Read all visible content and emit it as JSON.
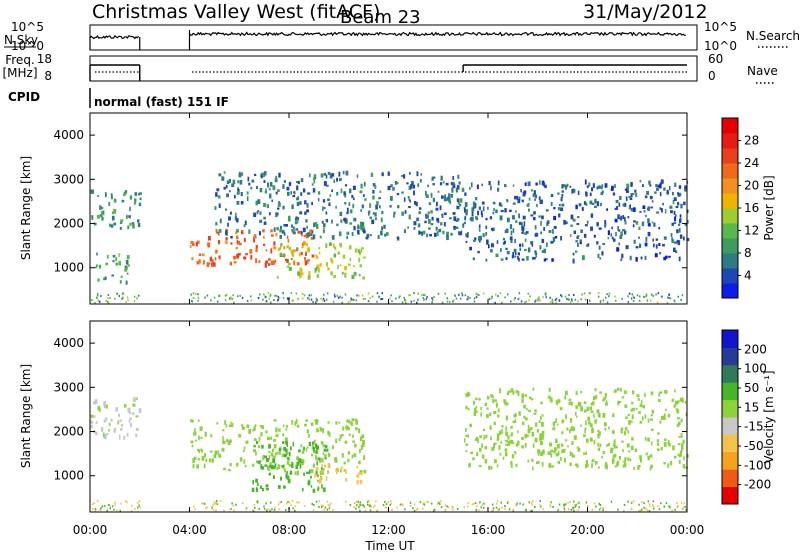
{
  "header": {
    "station": "Christmas Valley West (fitACF)",
    "beam": "Beam 23",
    "date": "31/May/2012"
  },
  "labels": {
    "nsky": "N.Sky",
    "nsearch": "N.Search",
    "freq_line1": "Freq.",
    "freq_line2": "[MHz]",
    "nave": "Nave",
    "cpid": "CPID",
    "cpid_text": "normal (fast) 151 IF",
    "ylabel": "Slant Range [km]",
    "xlabel": "Time UT",
    "power_label": "Power [dB]",
    "velocity_label": "Velocity [m s⁻¹]"
  },
  "noise_ticks": {
    "left": [
      "10^5",
      "10^0"
    ],
    "right": [
      "10^5",
      "10^0"
    ]
  },
  "freq_ticks": {
    "left": [
      "18",
      "8"
    ],
    "right": [
      "60",
      "0"
    ]
  },
  "colors": {
    "power": [
      "#0a1ee6",
      "#1e46b4",
      "#2e7b82",
      "#3e9a5e",
      "#58b84a",
      "#9ccc32",
      "#f0b400",
      "#f09020",
      "#f06a1a",
      "#e8401a",
      "#e61c14",
      "#e60000"
    ],
    "velocity": [
      "#e60000",
      "#f05a14",
      "#f5a21e",
      "#f2c24a",
      "#c8c8c8",
      "#8cd23c",
      "#48b42a",
      "#2f7a5a",
      "#243c96",
      "#1414cc"
    ]
  },
  "chart_data": [
    {
      "type": "heatmap",
      "title": "Power",
      "xlabel": "Time UT",
      "ylabel": "Slant Range [km]",
      "x_ticks": [
        "00:00",
        "04:00",
        "08:00",
        "12:00",
        "16:00",
        "20:00",
        "00:00"
      ],
      "x_range_hours": [
        0,
        24
      ],
      "y_ticks": [
        "1000",
        "2000",
        "3000",
        "4000"
      ],
      "y_range_km": [
        180,
        4500
      ],
      "colorbar_label": "Power [dB]",
      "colorbar_ticks": [
        "4",
        "8",
        "12",
        "16",
        "20",
        "24",
        "28"
      ],
      "colorbar_range": [
        0,
        30
      ],
      "features": [
        {
          "name": "early",
          "t": [
            0,
            2
          ],
          "r": [
            1900,
            2800
          ],
          "level": 8
        },
        {
          "name": "early-low",
          "t": [
            0.2,
            1.6
          ],
          "r": [
            700,
            1400
          ],
          "level": 10
        },
        {
          "name": "strong-band",
          "t": [
            4,
            9
          ],
          "r": [
            1100,
            1900
          ],
          "level": 22
        },
        {
          "name": "mid-band",
          "t": [
            7.5,
            11
          ],
          "r": [
            800,
            1600
          ],
          "level": 14
        },
        {
          "name": "upper-arc",
          "t": [
            5,
            15
          ],
          "r": [
            1700,
            3200
          ],
          "level": 6
        },
        {
          "name": "late-arc",
          "t": [
            15,
            24
          ],
          "r": [
            1200,
            3000
          ],
          "level": 5
        }
      ],
      "grid": false,
      "legend": "colorbar-right"
    },
    {
      "type": "heatmap",
      "title": "Velocity",
      "xlabel": "Time UT",
      "ylabel": "Slant Range [km]",
      "x_ticks": [
        "00:00",
        "04:00",
        "08:00",
        "12:00",
        "16:00",
        "20:00",
        "00:00"
      ],
      "x_range_hours": [
        0,
        24
      ],
      "y_ticks": [
        "1000",
        "2000",
        "3000",
        "4000"
      ],
      "y_range_km": [
        180,
        4500
      ],
      "colorbar_label": "Velocity [m s⁻¹]",
      "colorbar_ticks": [
        "-200",
        "-100",
        "-50",
        "-15",
        "15",
        "50",
        "100",
        "200"
      ],
      "colorbar_range": [
        -250,
        250
      ],
      "features": [
        {
          "name": "early",
          "t": [
            0,
            2
          ],
          "r": [
            1900,
            2800
          ],
          "velocity": -20
        },
        {
          "name": "grey-band",
          "t": [
            4,
            11
          ],
          "r": [
            1100,
            2300
          ],
          "velocity": 0
        },
        {
          "name": "green-patch",
          "t": [
            6.5,
            9.5
          ],
          "r": [
            700,
            1800
          ],
          "velocity": 30
        },
        {
          "name": "orange-patch",
          "t": [
            9,
            11
          ],
          "r": [
            900,
            1300
          ],
          "velocity": -60
        },
        {
          "name": "late-arc",
          "t": [
            15,
            24
          ],
          "r": [
            1200,
            3000
          ],
          "velocity": 0
        }
      ],
      "grid": false,
      "legend": "colorbar-right"
    }
  ]
}
